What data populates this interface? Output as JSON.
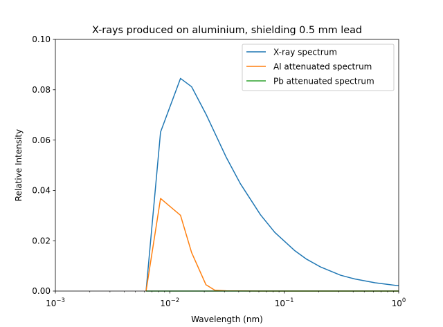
{
  "chart_data": {
    "type": "line",
    "title": "X-rays produced on aluminium, shielding 0.5 mm lead",
    "xlabel": "Wavelength (nm)",
    "ylabel": "Relative Intensity",
    "xscale": "log",
    "xlim": [
      0.001,
      1
    ],
    "ylim": [
      0,
      0.1
    ],
    "grid": false,
    "legend_position": "top-right",
    "x_ticks": [
      {
        "value": 0.001,
        "base": "10",
        "exp": "−3"
      },
      {
        "value": 0.01,
        "base": "10",
        "exp": "−2"
      },
      {
        "value": 0.1,
        "base": "10",
        "exp": "−1"
      },
      {
        "value": 1,
        "base": "10",
        "exp": "0"
      }
    ],
    "y_ticks": [
      {
        "value": 0,
        "label": "0.00"
      },
      {
        "value": 0.02,
        "label": "0.02"
      },
      {
        "value": 0.04,
        "label": "0.04"
      },
      {
        "value": 0.06,
        "label": "0.06"
      },
      {
        "value": 0.08,
        "label": "0.08"
      },
      {
        "value": 0.1,
        "label": "0.10"
      }
    ],
    "series": [
      {
        "name": "X-ray spectrum",
        "color": "#1f77b4",
        "points": [
          [
            0.0062,
            0.0
          ],
          [
            0.0083,
            0.0632
          ],
          [
            0.0124,
            0.0845
          ],
          [
            0.0155,
            0.0812
          ],
          [
            0.0207,
            0.0703
          ],
          [
            0.031,
            0.0533
          ],
          [
            0.0413,
            0.0427
          ],
          [
            0.062,
            0.0303
          ],
          [
            0.0827,
            0.0233
          ],
          [
            0.124,
            0.016
          ],
          [
            0.155,
            0.0128
          ],
          [
            0.207,
            0.0096
          ],
          [
            0.31,
            0.0063
          ],
          [
            0.413,
            0.0048
          ],
          [
            0.62,
            0.0033
          ],
          [
            1.0,
            0.0021
          ]
        ]
      },
      {
        "name": "Al attenuated spectrum",
        "color": "#ff7f0e",
        "points": [
          [
            0.0062,
            0.0
          ],
          [
            0.0083,
            0.0368
          ],
          [
            0.0124,
            0.0301
          ],
          [
            0.0155,
            0.0153
          ],
          [
            0.0207,
            0.0025
          ],
          [
            0.0248,
            0.0003
          ],
          [
            0.031,
            0.0001
          ],
          [
            0.062,
            0.0
          ],
          [
            1.0,
            0.0
          ]
        ]
      },
      {
        "name": "Pb attenuated spectrum",
        "color": "#2ca02c",
        "points": [
          [
            0.0062,
            0.0
          ],
          [
            1.0,
            0.0
          ]
        ]
      }
    ]
  }
}
